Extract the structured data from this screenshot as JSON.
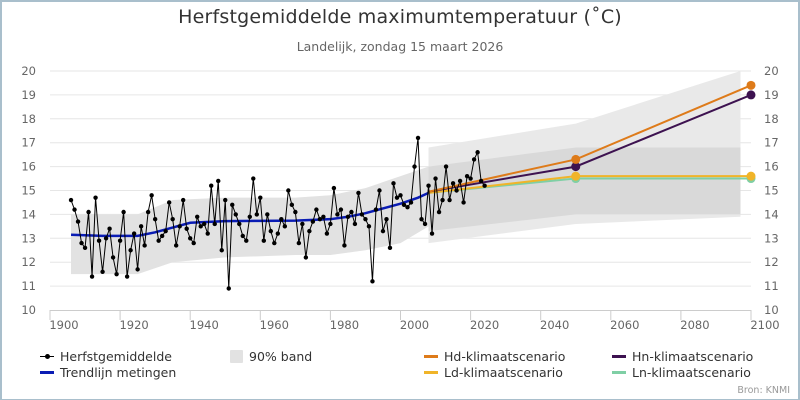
{
  "chart_data": {
    "type": "line",
    "title": "Herfstgemiddelde maximumtemperatuur (˚C)",
    "subtitle": "Landelijk, zondag 15 maart 2026",
    "xlabel": "",
    "ylabel": "",
    "xlim": [
      1900,
      2100
    ],
    "ylim": [
      10,
      20
    ],
    "x_ticks": [
      "1900",
      "1920",
      "1940",
      "1960",
      "1980",
      "2000",
      "2020",
      "2040",
      "2060",
      "2080",
      "2100"
    ],
    "y_ticks": [
      "10",
      "11",
      "12",
      "13",
      "14",
      "15",
      "16",
      "17",
      "18",
      "19",
      "20"
    ],
    "y_axis_sides": "left-and-right",
    "grid": true,
    "legend_position": "bottom",
    "series": [
      {
        "name": "Herfstgemiddelde",
        "style": "line-with-markers",
        "color": "#000000",
        "x_start": 1906,
        "values": [
          14.6,
          14.2,
          13.7,
          12.8,
          12.6,
          14.1,
          11.4,
          14.7,
          12.9,
          11.6,
          13.0,
          13.4,
          12.2,
          11.5,
          12.9,
          14.1,
          11.4,
          12.5,
          13.2,
          11.7,
          13.5,
          12.7,
          14.1,
          14.8,
          13.8,
          12.9,
          13.1,
          13.3,
          14.5,
          13.8,
          12.7,
          13.5,
          14.6,
          13.4,
          13.0,
          12.8,
          13.9,
          13.5,
          13.6,
          13.2,
          15.2,
          13.6,
          15.4,
          12.5,
          14.6,
          10.9,
          14.4,
          14.0,
          13.6,
          13.1,
          12.9,
          13.9,
          15.5,
          14.0,
          14.7,
          12.9,
          14.0,
          13.3,
          12.8,
          13.2,
          13.8,
          13.5,
          15.0,
          14.4,
          14.1,
          12.8,
          13.6,
          12.2,
          13.3,
          13.7,
          14.2,
          13.8,
          13.9,
          13.2,
          13.6,
          15.1,
          14.0,
          14.2,
          12.7,
          13.9,
          14.1,
          13.6,
          14.9,
          14.0,
          13.8,
          13.5,
          11.2,
          14.2,
          15.0,
          13.3,
          13.8,
          12.6,
          15.3,
          14.7,
          14.8,
          14.4,
          14.3,
          14.5,
          16.0,
          17.2,
          13.8,
          13.6,
          15.2,
          13.2,
          15.5,
          14.1,
          14.6,
          16.0,
          14.6,
          15.3,
          15.0,
          15.4,
          14.5,
          15.6,
          15.5,
          16.3,
          16.6,
          15.4,
          15.2
        ]
      },
      {
        "name": "Trendlijn metingen",
        "style": "line",
        "color": "#0a1cb4",
        "x": [
          1906,
          1915,
          1925,
          1930,
          1940,
          1950,
          1960,
          1970,
          1980,
          1985,
          1990,
          1995,
          2000,
          2005,
          2008
        ],
        "values": [
          13.15,
          13.1,
          13.1,
          13.25,
          13.65,
          13.72,
          13.73,
          13.74,
          13.8,
          13.9,
          14.05,
          14.25,
          14.45,
          14.7,
          14.9
        ]
      },
      {
        "name": "90% band",
        "style": "band",
        "color": "#e2e2e2",
        "x": [
          1906,
          1925,
          1935,
          1950,
          1970,
          1980,
          1990,
          2000,
          2008
        ],
        "lower": [
          11.5,
          11.5,
          12.0,
          12.2,
          12.3,
          12.3,
          12.5,
          12.8,
          13.5
        ],
        "upper": [
          14.0,
          14.0,
          14.6,
          14.7,
          14.7,
          14.8,
          15.1,
          15.6,
          16.0
        ]
      },
      {
        "name": "Scenario band outer",
        "style": "band",
        "color": "#e9e9e9",
        "x": [
          2008,
          2050,
          2097
        ],
        "lower": [
          12.8,
          13.6,
          13.9
        ],
        "upper": [
          16.8,
          17.8,
          20.0
        ]
      },
      {
        "name": "Scenario band inner",
        "style": "band",
        "color": "#d9d9d9",
        "x": [
          2008,
          2050,
          2097
        ],
        "lower": [
          13.3,
          14.0,
          14.0
        ],
        "upper": [
          16.0,
          16.8,
          16.8
        ]
      },
      {
        "name": "Hd-klimaatscenario",
        "style": "line-with-markers",
        "color": "#de7b1a",
        "x": [
          2008,
          2050,
          2100
        ],
        "values": [
          14.95,
          16.3,
          19.4
        ]
      },
      {
        "name": "Hn-klimaatscenario",
        "style": "line-with-markers",
        "color": "#3d1250",
        "x": [
          2008,
          2050,
          2100
        ],
        "values": [
          14.95,
          16.0,
          19.0
        ]
      },
      {
        "name": "Ln-klimaatscenario",
        "style": "line-with-markers",
        "color": "#7fcfa5",
        "x": [
          2008,
          2050,
          2100
        ],
        "values": [
          14.9,
          15.5,
          15.5
        ]
      },
      {
        "name": "Ld-klimaatscenario",
        "style": "line-with-markers",
        "color": "#f0b429",
        "x": [
          2008,
          2050,
          2100
        ],
        "values": [
          14.9,
          15.6,
          15.6
        ]
      }
    ],
    "legend": [
      {
        "label": "Herfstgemiddelde",
        "type": "dot-line",
        "color": "#000000"
      },
      {
        "label": "90% band",
        "type": "box",
        "color": "#e2e2e2"
      },
      {
        "label": "Hd-klimaatscenario",
        "type": "line",
        "color": "#de7b1a"
      },
      {
        "label": "Hn-klimaatscenario",
        "type": "line",
        "color": "#3d1250"
      },
      {
        "label": "Trendlijn metingen",
        "type": "line",
        "color": "#0a1cb4"
      },
      {
        "label": "Ld-klimaatscenario",
        "type": "line",
        "color": "#f0b429"
      },
      {
        "label": "Ln-klimaatscenario",
        "type": "line",
        "color": "#7fcfa5"
      }
    ],
    "source": "Bron: KNMI"
  }
}
